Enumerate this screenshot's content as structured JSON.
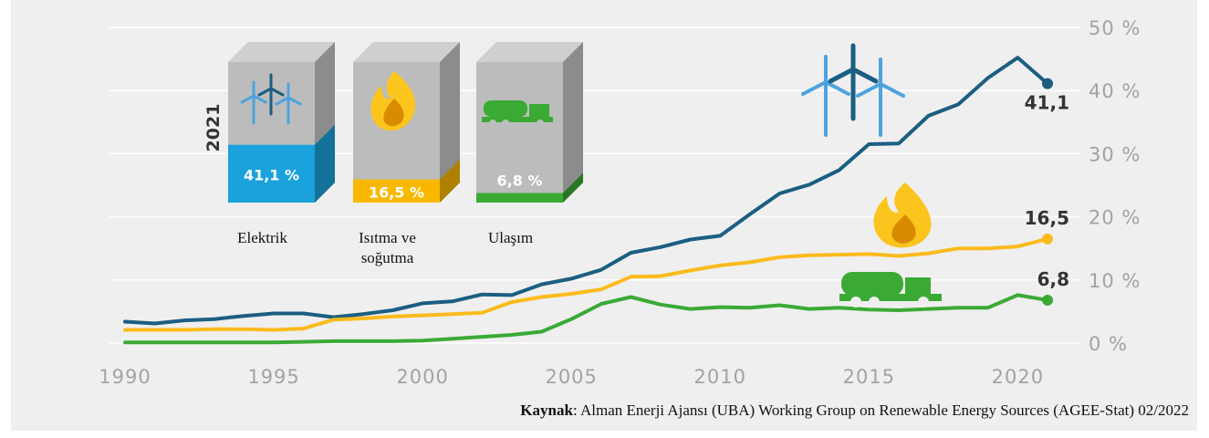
{
  "chart_data": {
    "type": "line",
    "x": [
      1990,
      1991,
      1992,
      1993,
      1994,
      1995,
      1996,
      1997,
      1998,
      1999,
      2000,
      2001,
      2002,
      2003,
      2004,
      2005,
      2006,
      2007,
      2008,
      2009,
      2010,
      2011,
      2012,
      2013,
      2014,
      2015,
      2016,
      2017,
      2018,
      2019,
      2020,
      2021
    ],
    "xlim": [
      1990,
      2021
    ],
    "xticks": [
      1990,
      1995,
      2000,
      2005,
      2010,
      2015,
      2020
    ],
    "ylim": [
      0,
      50
    ],
    "yticks": [
      {
        "value": 0,
        "label": "0 %"
      },
      {
        "value": 10,
        "label": "10 %"
      },
      {
        "value": 20,
        "label": "20 %"
      },
      {
        "value": 30,
        "label": "30 %"
      },
      {
        "value": 40,
        "label": "40 %"
      },
      {
        "value": 50,
        "label": "50 %"
      }
    ],
    "grid": true,
    "series": [
      {
        "color": "#1b5e82",
        "values": [
          3.4,
          3.1,
          3.6,
          3.8,
          4.3,
          4.7,
          4.7,
          4.1,
          4.6,
          5.2,
          6.3,
          6.6,
          7.7,
          7.6,
          9.3,
          10.2,
          11.6,
          14.3,
          15.2,
          16.4,
          17.0,
          20.4,
          23.7,
          25.1,
          27.4,
          31.5,
          31.6,
          36.0,
          37.8,
          42.0,
          45.2,
          41.1
        ],
        "value_labels": [
          null,
          null,
          null,
          null,
          null,
          null,
          null,
          null,
          null,
          null,
          null,
          null,
          null,
          null,
          null,
          null,
          null,
          null,
          null,
          null,
          null,
          null,
          null,
          null,
          null,
          null,
          null,
          null,
          null,
          null,
          null,
          "41,1"
        ]
      },
      {
        "color": "#fbbb1c",
        "values": [
          2.1,
          2.1,
          2.1,
          2.2,
          2.2,
          2.1,
          2.3,
          3.7,
          3.9,
          4.2,
          4.4,
          4.6,
          4.8,
          6.5,
          7.3,
          7.8,
          8.5,
          10.5,
          10.6,
          11.5,
          12.3,
          12.8,
          13.6,
          13.9,
          14.0,
          14.1,
          13.8,
          14.2,
          15.0,
          15.0,
          15.3,
          16.5
        ],
        "value_labels": [
          null,
          null,
          null,
          null,
          null,
          null,
          null,
          null,
          null,
          null,
          null,
          null,
          null,
          null,
          null,
          null,
          null,
          null,
          null,
          null,
          null,
          null,
          null,
          null,
          null,
          null,
          null,
          null,
          null,
          null,
          null,
          "16,5"
        ]
      },
      {
        "color": "#3aaa35",
        "values": [
          0.1,
          0.1,
          0.1,
          0.1,
          0.1,
          0.1,
          0.2,
          0.3,
          0.3,
          0.3,
          0.4,
          0.7,
          1.0,
          1.3,
          1.8,
          3.8,
          6.2,
          7.3,
          6.1,
          5.4,
          5.7,
          5.6,
          6.0,
          5.4,
          5.6,
          5.3,
          5.2,
          5.4,
          5.6,
          5.6,
          7.6,
          6.8
        ],
        "value_labels": [
          null,
          null,
          null,
          null,
          null,
          null,
          null,
          null,
          null,
          null,
          null,
          null,
          null,
          null,
          null,
          null,
          null,
          null,
          null,
          null,
          null,
          null,
          null,
          null,
          null,
          null,
          null,
          null,
          null,
          null,
          null,
          "6,8"
        ]
      }
    ],
    "inset": {
      "title": "2021",
      "ylim": [
        0,
        100
      ],
      "categories": [
        "Elektrik",
        "Isıtma ve soğutma",
        "Ulaşım"
      ],
      "values": [
        41.1,
        16.5,
        6.8
      ],
      "value_labels": [
        "41,1 %",
        "16,5 %",
        "6,8 %"
      ],
      "colors": [
        "#1ba1dc",
        "#f9b800",
        "#3aaa35"
      ],
      "label_colors": [
        "#ffffff",
        "#ffffff",
        "#ffffff"
      ]
    },
    "source": {
      "label": "Kaynak",
      "text": ": Alman Enerji Ajansı (UBA) Working Group on Renewable Energy Sources (AGEE-Stat) 02/2022"
    }
  }
}
